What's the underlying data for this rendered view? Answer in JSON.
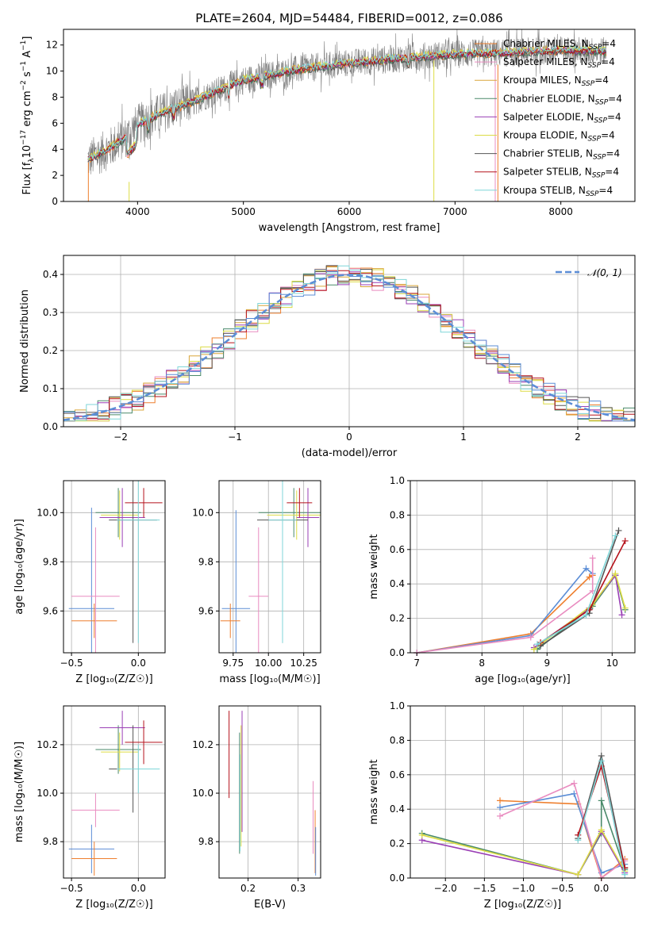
{
  "figure": {
    "title": "PLATE=2604, MJD=54484, FIBERID=0012, z=0.086"
  },
  "colors": {
    "chabrier_miles": "#ee7f2e",
    "salpeter_miles": "#e98cc0",
    "kroupa_miles": "#d9a63a",
    "chabrier_elodie": "#4a8a6a",
    "salpeter_elodie": "#9a3fb5",
    "kroupa_elodie": "#dcdc45",
    "chabrier_stelib": "#555555",
    "salpeter_stelib": "#b5121b",
    "kroupa_stelib": "#7fd6d8",
    "data": "#808080",
    "normal": "#5b8dd6",
    "blue_model": "#5b8dd6"
  },
  "chart_data": [
    {
      "id": "spectrum",
      "type": "line",
      "xlabel": "wavelength [Angstrom, rest frame]",
      "ylabel_main": "Flux [f",
      "ylabel_sub": "λ",
      "ylabel_rest": "10",
      "ylabel_exp": "−17",
      "ylabel_tail": " erg cm",
      "ylabel_exp2": "−2",
      "ylabel_tail2": " s",
      "ylabel_exp3": "−1",
      "ylabel_tail3": " A",
      "ylabel_exp4": "−1",
      "ylabel_end": "]",
      "xlim": [
        3300,
        8700
      ],
      "ylim": [
        0,
        13.2
      ],
      "xticks": [
        4000,
        5000,
        6000,
        7000,
        8000
      ],
      "yticks": [
        0,
        2,
        4,
        6,
        8,
        10,
        12
      ],
      "data_range": [
        3530,
        8430
      ],
      "continuum": [
        [
          3530,
          3.2
        ],
        [
          3700,
          3.9
        ],
        [
          3900,
          5.0
        ],
        [
          4000,
          5.9
        ],
        [
          4200,
          6.7
        ],
        [
          4500,
          7.6
        ],
        [
          5000,
          9.3
        ],
        [
          5500,
          10.1
        ],
        [
          6000,
          10.6
        ],
        [
          6500,
          11.0
        ],
        [
          7000,
          11.3
        ],
        [
          7500,
          11.4
        ],
        [
          8000,
          11.6
        ],
        [
          8430,
          11.5
        ]
      ],
      "legend": [
        {
          "name": "Chabrier MILES",
          "sub": "SSP",
          "n": "=4"
        },
        {
          "name": "Salpeter MILES",
          "sub": "SSP",
          "n": "=4"
        },
        {
          "name": "Kroupa MILES",
          "sub": "SSP",
          "n": "=4"
        },
        {
          "name": "Chabrier ELODIE",
          "sub": "SSP",
          "n": "=4"
        },
        {
          "name": "Salpeter ELODIE",
          "sub": "SSP",
          "n": "=4"
        },
        {
          "name": "Kroupa ELODIE",
          "sub": "SSP",
          "n": "=4"
        },
        {
          "name": "Chabrier STELIB",
          "sub": "SSP",
          "n": "=4"
        },
        {
          "name": "Salpeter STELIB",
          "sub": "SSP",
          "n": "=4"
        },
        {
          "name": "Kroupa STELIB",
          "sub": "SSP",
          "n": "=4"
        }
      ],
      "legend_prefix": "N"
    },
    {
      "id": "residuals",
      "type": "bar",
      "xlabel": "(data-model)/error",
      "ylabel": "Normed distribution",
      "xlim": [
        -2.5,
        2.5
      ],
      "ylim": [
        0,
        0.45
      ],
      "xticks": [
        -2,
        -1,
        0,
        1,
        2
      ],
      "yticks": [
        0.0,
        0.1,
        0.2,
        0.3,
        0.4
      ],
      "bin_width": 0.1,
      "legend_label": "𝒩(0, 1)",
      "grid": true
    },
    {
      "id": "age_vs_Z",
      "type": "scatter",
      "xlabel": "Z [log₁₀(Z/Z☉)]",
      "ylabel": "age  [log₁₀(age/yr)]",
      "xlim": [
        -0.56,
        0.2
      ],
      "ylim": [
        9.43,
        10.13
      ],
      "xticks": [
        -0.5,
        0.0
      ],
      "yticks": [
        9.6,
        9.8,
        10.0
      ],
      "points": [
        {
          "x": -0.35,
          "y": 9.61,
          "x_err": 0.17,
          "y_err": 0.41,
          "series": "blue"
        },
        {
          "x": -0.33,
          "y": 9.56,
          "x_err": 0.17,
          "y_err": 0.07,
          "series": "orange"
        },
        {
          "x": -0.32,
          "y": 9.66,
          "x_err": 0.18,
          "y_err": 0.28,
          "series": "pink"
        },
        {
          "x": -0.15,
          "y": 10.0,
          "x_err": 0.17,
          "y_err": 0.1,
          "series": "green"
        },
        {
          "x": -0.14,
          "y": 9.99,
          "x_err": 0.14,
          "y_err": 0.1,
          "series": "yellow"
        },
        {
          "x": -0.12,
          "y": 9.98,
          "x_err": 0.17,
          "y_err": 0.12,
          "series": "purple"
        },
        {
          "x": -0.04,
          "y": 9.97,
          "x_err": 0.18,
          "y_err": 0.5,
          "series": "gray"
        },
        {
          "x": 0.04,
          "y": 10.04,
          "x_err": 0.14,
          "y_err": 0.06,
          "series": "red"
        },
        {
          "x": 0.0,
          "y": 9.97,
          "x_err": 0.16,
          "y_err": 0.5,
          "series": "cyan"
        }
      ]
    },
    {
      "id": "age_vs_mass",
      "type": "scatter",
      "xlabel": "mass [log₁₀(M/M☉)]",
      "ylabel": "",
      "xlim": [
        9.65,
        10.37
      ],
      "ylim": [
        9.43,
        10.13
      ],
      "xticks": [
        9.75,
        10.0,
        10.25
      ],
      "yticks": [
        9.6,
        9.8,
        10.0
      ],
      "points": [
        {
          "x": 9.77,
          "y": 9.61,
          "x_err": 0.1,
          "y_err": 0.4,
          "series": "blue"
        },
        {
          "x": 9.73,
          "y": 9.56,
          "x_err": 0.07,
          "y_err": 0.07,
          "series": "orange"
        },
        {
          "x": 9.93,
          "y": 9.66,
          "x_err": 0.07,
          "y_err": 0.28,
          "series": "pink"
        },
        {
          "x": 10.18,
          "y": 10.0,
          "x_err": 0.25,
          "y_err": 0.1,
          "series": "green"
        },
        {
          "x": 10.2,
          "y": 9.99,
          "x_err": 0.21,
          "y_err": 0.1,
          "series": "yellow"
        },
        {
          "x": 10.28,
          "y": 9.98,
          "x_err": 0.08,
          "y_err": 0.12,
          "series": "purple"
        },
        {
          "x": 10.1,
          "y": 9.97,
          "x_err": 0.18,
          "y_err": 0.5,
          "series": "gray"
        },
        {
          "x": 10.22,
          "y": 10.04,
          "x_err": 0.09,
          "y_err": 0.06,
          "series": "red"
        },
        {
          "x": 10.1,
          "y": 9.97,
          "x_err": 0.1,
          "y_err": 0.5,
          "series": "cyan"
        }
      ]
    },
    {
      "id": "weight_vs_age",
      "type": "line",
      "xlabel": "age  [log₁₀(age/yr)]",
      "ylabel": "mass weight",
      "xlim": [
        6.9,
        10.35
      ],
      "ylim": [
        0,
        1
      ],
      "xticks": [
        7,
        8,
        9,
        10
      ],
      "yticks": [
        0.0,
        0.2,
        0.4,
        0.6,
        0.8,
        1.0
      ],
      "grid": true,
      "series": [
        {
          "key": "chabrier_miles",
          "points": [
            [
              7.0,
              0.0
            ],
            [
              8.75,
              0.11
            ],
            [
              9.65,
              0.44
            ],
            [
              9.7,
              0.45
            ]
          ]
        },
        {
          "key": "blue_model",
          "points": [
            [
              7.0,
              0.0
            ],
            [
              8.75,
              0.1
            ],
            [
              9.6,
              0.49
            ],
            [
              9.7,
              0.46
            ]
          ]
        },
        {
          "key": "salpeter_miles",
          "points": [
            [
              7.0,
              0.0
            ],
            [
              8.75,
              0.09
            ],
            [
              9.7,
              0.36
            ],
            [
              9.7,
              0.55
            ]
          ]
        },
        {
          "key": "chabrier_elodie",
          "points": [
            [
              8.85,
              0.02
            ],
            [
              9.7,
              0.27
            ],
            [
              10.05,
              0.45
            ],
            [
              10.2,
              0.25
            ]
          ]
        },
        {
          "key": "salpeter_elodie",
          "points": [
            [
              8.8,
              0.03
            ],
            [
              9.65,
              0.26
            ],
            [
              10.05,
              0.45
            ],
            [
              10.15,
              0.22
            ]
          ]
        },
        {
          "key": "kroupa_elodie",
          "points": [
            [
              8.8,
              0.02
            ],
            [
              9.7,
              0.28
            ],
            [
              10.05,
              0.46
            ],
            [
              10.2,
              0.26
            ]
          ]
        },
        {
          "key": "chabrier_stelib",
          "points": [
            [
              8.9,
              0.04
            ],
            [
              9.65,
              0.23
            ],
            [
              10.1,
              0.71
            ]
          ]
        },
        {
          "key": "salpeter_stelib",
          "points": [
            [
              8.9,
              0.06
            ],
            [
              9.65,
              0.25
            ],
            [
              10.2,
              0.65
            ]
          ]
        },
        {
          "key": "kroupa_stelib",
          "points": [
            [
              8.85,
              0.05
            ],
            [
              9.6,
              0.22
            ],
            [
              10.05,
              0.68
            ]
          ]
        }
      ]
    },
    {
      "id": "mass_vs_Z",
      "type": "scatter",
      "xlabel": "Z [log₁₀(Z/Z☉)]",
      "ylabel": "mass [log₁₀(M/M☉)]",
      "xlim": [
        -0.56,
        0.2
      ],
      "ylim": [
        9.65,
        10.36
      ],
      "xticks": [
        -0.5,
        0.0
      ],
      "yticks": [
        9.8,
        10.0,
        10.2
      ],
      "points": [
        {
          "x": -0.35,
          "y": 9.77,
          "x_err": 0.17,
          "y_err": 0.1,
          "series": "blue"
        },
        {
          "x": -0.33,
          "y": 9.73,
          "x_err": 0.17,
          "y_err": 0.07,
          "series": "orange"
        },
        {
          "x": -0.32,
          "y": 9.93,
          "x_err": 0.18,
          "y_err": 0.07,
          "series": "pink"
        },
        {
          "x": -0.15,
          "y": 10.18,
          "x_err": 0.17,
          "y_err": 0.1,
          "series": "green"
        },
        {
          "x": -0.14,
          "y": 10.17,
          "x_err": 0.14,
          "y_err": 0.08,
          "series": "yellow"
        },
        {
          "x": -0.12,
          "y": 10.27,
          "x_err": 0.17,
          "y_err": 0.07,
          "series": "purple"
        },
        {
          "x": -0.04,
          "y": 10.1,
          "x_err": 0.18,
          "y_err": 0.18,
          "series": "gray"
        },
        {
          "x": 0.04,
          "y": 10.21,
          "x_err": 0.14,
          "y_err": 0.09,
          "series": "red"
        },
        {
          "x": 0.0,
          "y": 10.1,
          "x_err": 0.16,
          "y_err": 0.1,
          "series": "cyan"
        }
      ]
    },
    {
      "id": "mass_vs_ebv",
      "type": "scatter",
      "xlabel": "E(B-V)",
      "ylabel": "",
      "xlim": [
        0.142,
        0.345
      ],
      "ylim": [
        9.65,
        10.36
      ],
      "xticks": [
        0.1,
        0.2,
        0.3
      ],
      "yticks": [
        9.8,
        10.0,
        10.2
      ],
      "points": [
        {
          "x": 0.162,
          "y": 10.16,
          "y_err": 0.18,
          "series": "red"
        },
        {
          "x": 0.183,
          "y": 10.0,
          "y_err": 0.25,
          "series": "green"
        },
        {
          "x": 0.186,
          "y": 10.03,
          "y_err": 0.25,
          "series": "yellow"
        },
        {
          "x": 0.188,
          "y": 10.09,
          "y_err": 0.25,
          "series": "purple"
        },
        {
          "x": 0.184,
          "y": 9.96,
          "y_err": 0.2,
          "series": "cyan"
        },
        {
          "x": 0.33,
          "y": 9.9,
          "y_err": 0.15,
          "series": "pink"
        },
        {
          "x": 0.334,
          "y": 9.8,
          "y_err": 0.13,
          "series": "orange"
        },
        {
          "x": 0.335,
          "y": 9.76,
          "y_err": 0.1,
          "series": "blue"
        }
      ]
    },
    {
      "id": "weight_vs_Z",
      "type": "line",
      "xlabel": "Z [log₁₀(Z/Z☉)]",
      "ylabel": "mass weight",
      "xlim": [
        -2.45,
        0.43
      ],
      "ylim": [
        0,
        1
      ],
      "xticks": [
        -2.0,
        -1.5,
        -1.0,
        -0.5,
        0.0
      ],
      "yticks": [
        0.0,
        0.2,
        0.4,
        0.6,
        0.8,
        1.0
      ],
      "grid": true,
      "series": [
        {
          "key": "chabrier_miles",
          "points": [
            [
              -1.3,
              0.45
            ],
            [
              -0.3,
              0.43
            ],
            [
              0.0,
              0.0
            ],
            [
              0.3,
              0.11
            ]
          ]
        },
        {
          "key": "blue_model",
          "points": [
            [
              -1.3,
              0.41
            ],
            [
              -0.35,
              0.49
            ],
            [
              0.0,
              0.03
            ],
            [
              0.3,
              0.08
            ]
          ]
        },
        {
          "key": "salpeter_miles",
          "points": [
            [
              -1.3,
              0.36
            ],
            [
              -0.35,
              0.55
            ],
            [
              0.0,
              0.0
            ],
            [
              0.3,
              0.1
            ]
          ]
        },
        {
          "key": "chabrier_elodie",
          "points": [
            [
              -2.3,
              0.26
            ],
            [
              -0.3,
              0.02
            ],
            [
              0.0,
              0.26
            ],
            [
              0.0,
              0.45
            ],
            [
              0.3,
              0.05
            ]
          ]
        },
        {
          "key": "salpeter_elodie",
          "points": [
            [
              -2.3,
              0.22
            ],
            [
              -0.3,
              0.02
            ],
            [
              0.0,
              0.27
            ],
            [
              0.3,
              0.03
            ]
          ]
        },
        {
          "key": "kroupa_elodie",
          "points": [
            [
              -2.3,
              0.25
            ],
            [
              -0.3,
              0.02
            ],
            [
              0.0,
              0.28
            ],
            [
              0.3,
              0.04
            ]
          ]
        },
        {
          "key": "chabrier_stelib",
          "points": [
            [
              -0.3,
              0.23
            ],
            [
              0.0,
              0.71
            ],
            [
              0.3,
              0.06
            ]
          ]
        },
        {
          "key": "salpeter_stelib",
          "points": [
            [
              -0.3,
              0.25
            ],
            [
              0.0,
              0.65
            ],
            [
              0.3,
              0.06
            ]
          ]
        },
        {
          "key": "kroupa_stelib",
          "points": [
            [
              -0.3,
              0.22
            ],
            [
              0.0,
              0.68
            ],
            [
              0.3,
              0.02
            ]
          ]
        }
      ]
    }
  ]
}
